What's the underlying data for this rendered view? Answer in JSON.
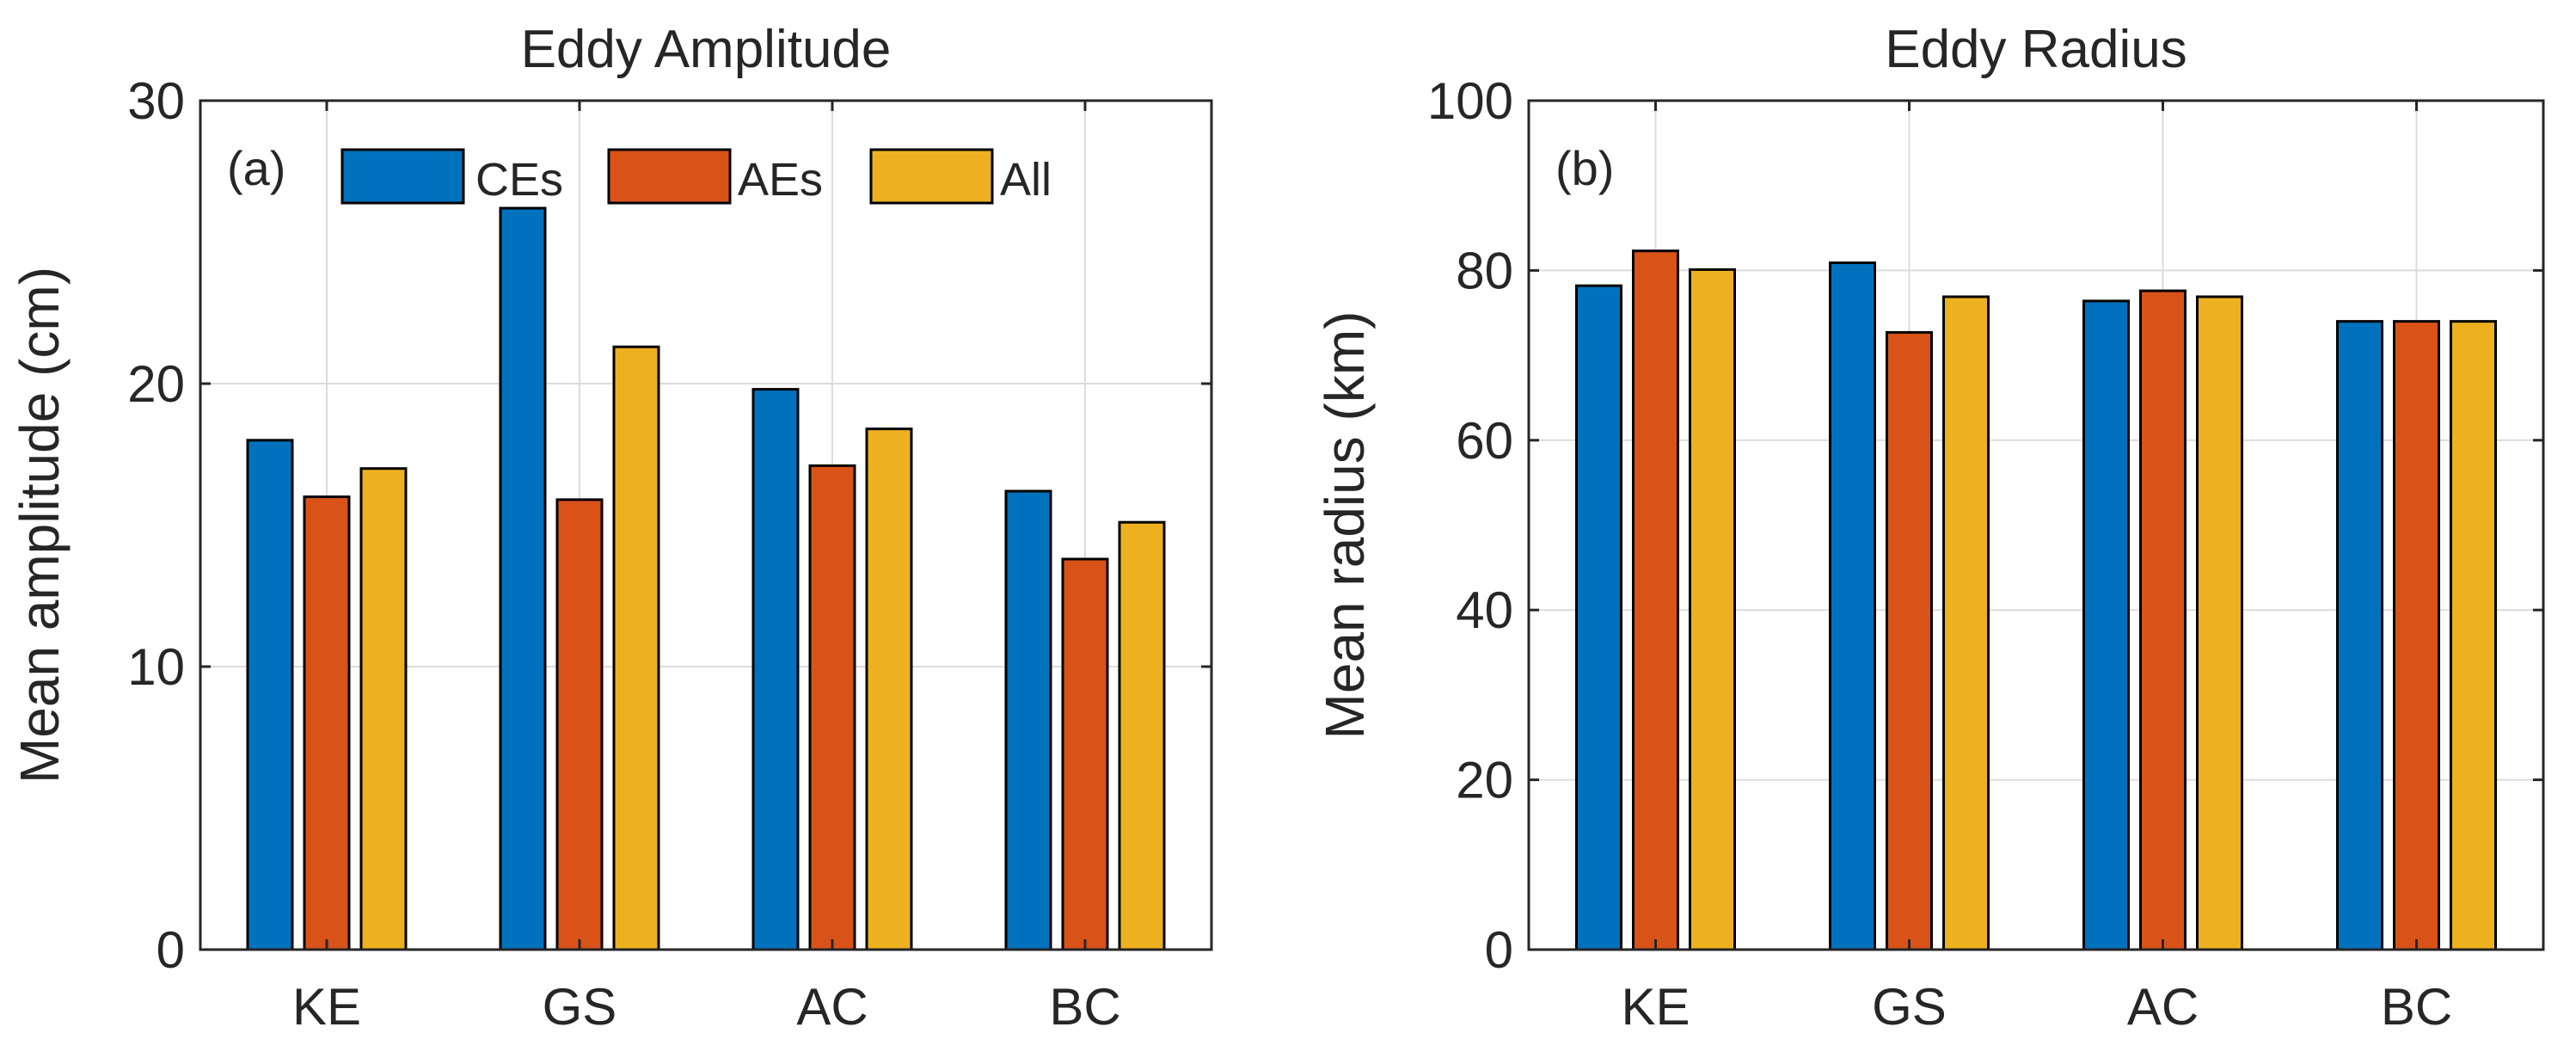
{
  "colors": {
    "CEs": "#0072BD",
    "AEs": "#D95319",
    "All": "#EDB120"
  },
  "legend": [
    "CEs",
    "AEs",
    "All"
  ],
  "chart_data": [
    {
      "type": "bar",
      "panel_label": "(a)",
      "title": "Eddy Amplitude",
      "xlabel": "",
      "ylabel": "Mean amplitude (cm)",
      "categories": [
        "KE",
        "GS",
        "AC",
        "BC"
      ],
      "ylim": [
        0,
        30
      ],
      "yticks": [
        0,
        10,
        20,
        30
      ],
      "grid": true,
      "legend_position": "top",
      "series": [
        {
          "name": "CEs",
          "values": [
            18.0,
            26.2,
            19.8,
            16.2
          ]
        },
        {
          "name": "AEs",
          "values": [
            16.0,
            15.9,
            17.1,
            13.8
          ]
        },
        {
          "name": "All",
          "values": [
            17.0,
            21.3,
            18.4,
            15.1
          ]
        }
      ]
    },
    {
      "type": "bar",
      "panel_label": "(b)",
      "title": "Eddy Radius",
      "xlabel": "",
      "ylabel": "Mean radius (km)",
      "categories": [
        "KE",
        "GS",
        "AC",
        "BC"
      ],
      "ylim": [
        0,
        100
      ],
      "yticks": [
        0,
        20,
        40,
        60,
        80,
        100
      ],
      "grid": true,
      "series": [
        {
          "name": "CEs",
          "values": [
            78.2,
            80.9,
            76.4,
            74.0
          ]
        },
        {
          "name": "AEs",
          "values": [
            82.3,
            72.7,
            77.6,
            74.0
          ]
        },
        {
          "name": "All",
          "values": [
            80.1,
            76.9,
            76.9,
            74.0
          ]
        }
      ]
    }
  ]
}
